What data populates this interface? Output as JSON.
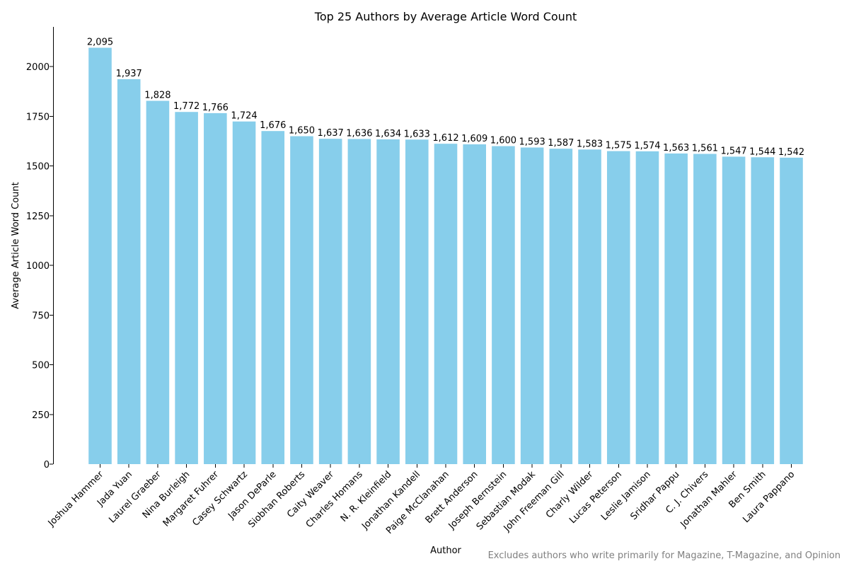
{
  "chart_data": {
    "type": "bar",
    "title": "Top 25 Authors by Average Article Word Count",
    "xlabel": "Author",
    "ylabel": "Average Article Word Count",
    "footnote": "Excludes authors who write primarily for Magazine, T-Magazine, and Opinion",
    "categories": [
      "Joshua Hammer",
      "Jada Yuan",
      "Laurel Graeber",
      "Nina Burleigh",
      "Margaret Fuhrer",
      "Casey Schwartz",
      "Jason DeParle",
      "Siobhan Roberts",
      "Caity Weaver",
      "Charles Homans",
      "N. R. Kleinfield",
      "Jonathan Kandell",
      "Paige McClanahan",
      "Brett Anderson",
      "Joseph Bernstein",
      "Sebastian Modak",
      "John Freeman Gill",
      "Charly Wilder",
      "Lucas Peterson",
      "Leslie Jamison",
      "Sridhar Pappu",
      "C. J. Chivers",
      "Jonathan Mahler",
      "Ben Smith",
      "Laura Pappano"
    ],
    "values": [
      2095,
      1937,
      1828,
      1772,
      1766,
      1724,
      1676,
      1650,
      1637,
      1636,
      1634,
      1633,
      1612,
      1609,
      1600,
      1593,
      1587,
      1583,
      1575,
      1574,
      1563,
      1561,
      1547,
      1544,
      1542
    ],
    "value_labels": [
      "2,095",
      "1,937",
      "1,828",
      "1,772",
      "1,766",
      "1,724",
      "1,676",
      "1,650",
      "1,637",
      "1,636",
      "1,634",
      "1,633",
      "1,612",
      "1,609",
      "1,600",
      "1,593",
      "1,587",
      "1,583",
      "1,575",
      "1,574",
      "1,563",
      "1,561",
      "1,547",
      "1,544",
      "1,542"
    ],
    "yticks": [
      0,
      250,
      500,
      750,
      1000,
      1250,
      1500,
      1750,
      2000
    ],
    "ylim": [
      0,
      2200
    ],
    "bar_color": "#87ceeb",
    "grid": false,
    "legend": "none"
  }
}
